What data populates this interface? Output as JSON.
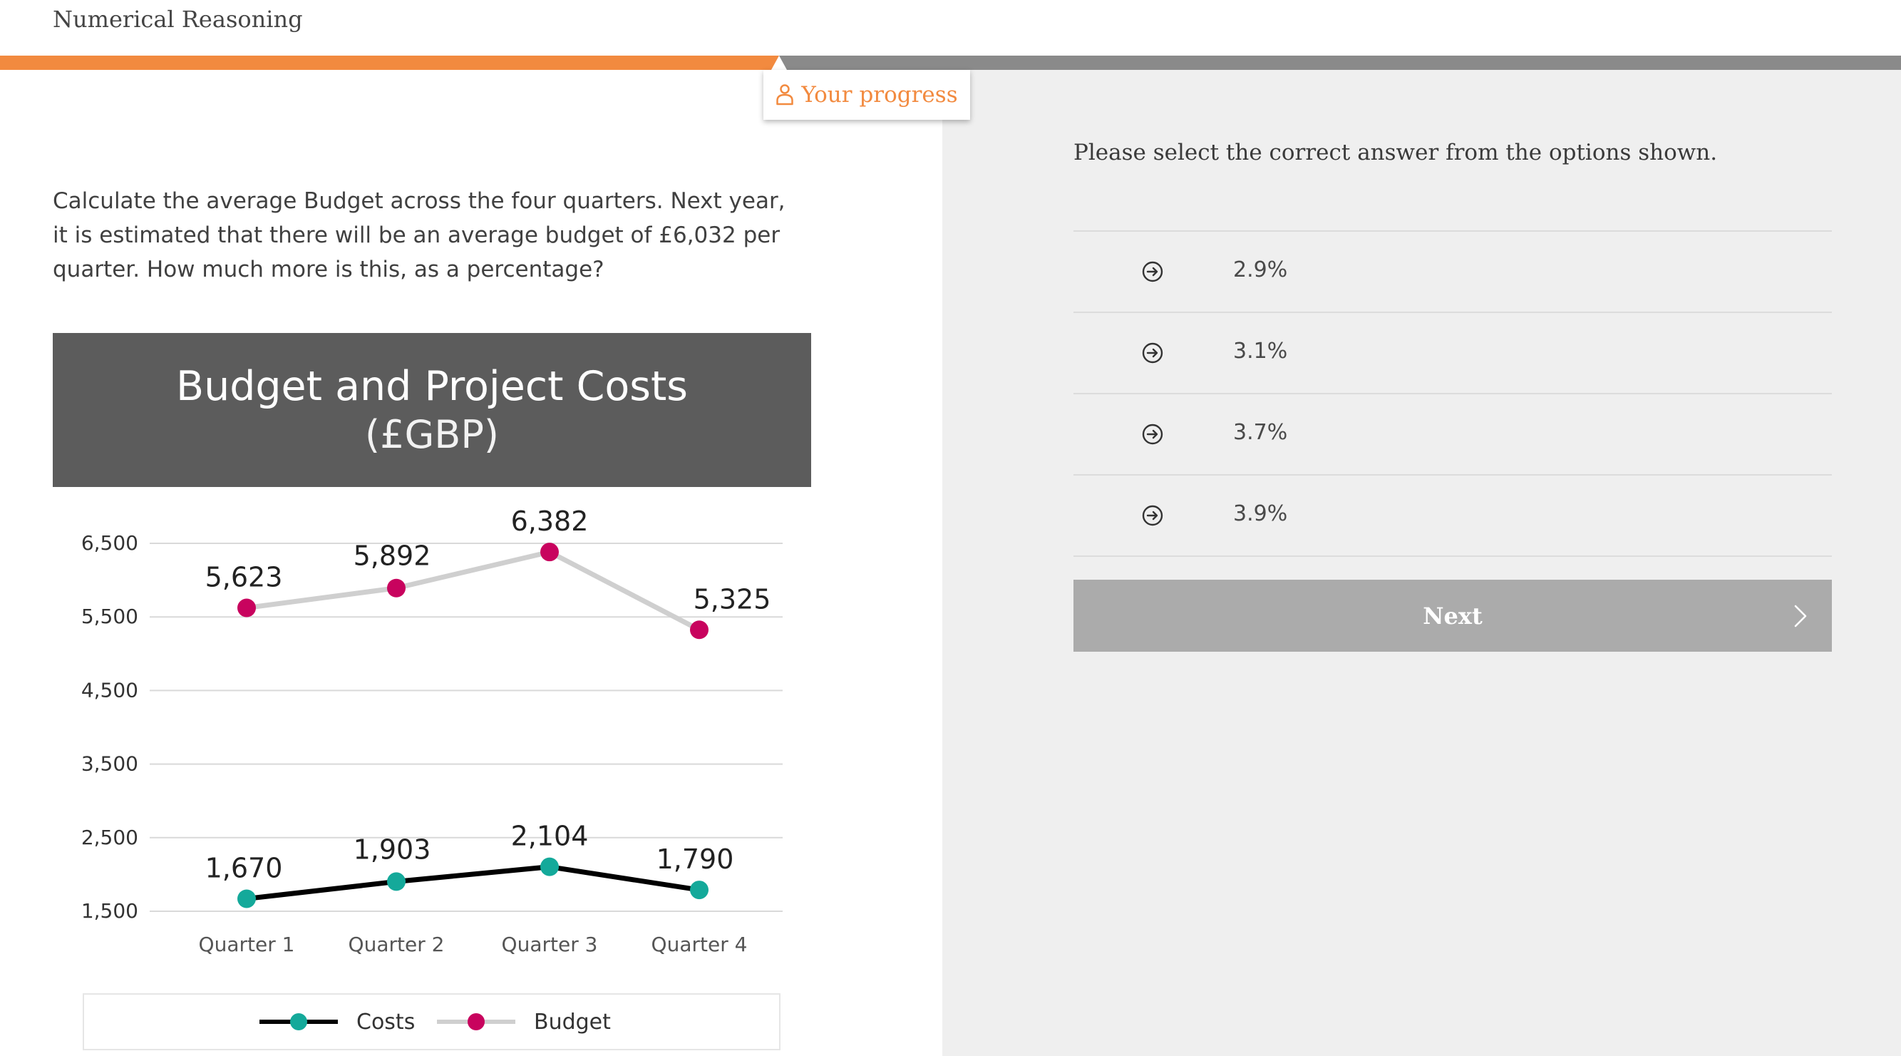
{
  "header": {
    "title": "Numerical Reasoning"
  },
  "progress": {
    "fraction": 0.41,
    "label": "Your progress"
  },
  "question": {
    "text": "Calculate the average Budget across the four quarters. Next year, it is estimated that there will be an average budget of £6,032 per quarter. How much more is this, as a percentage?"
  },
  "chart_data": {
    "type": "line",
    "title": "Budget and Project Costs",
    "subtitle": "(£GBP)",
    "categories": [
      "Quarter 1",
      "Quarter 2",
      "Quarter 3",
      "Quarter 4"
    ],
    "yticks": [
      1500,
      2500,
      3500,
      4500,
      5500,
      6500
    ],
    "ytick_labels": [
      "1,500",
      "2,500",
      "3,500",
      "4,500",
      "5,500",
      "6,500"
    ],
    "ylim": [
      1500,
      6500
    ],
    "grid": true,
    "legend_position": "bottom",
    "series": [
      {
        "name": "Costs",
        "values": [
          1670,
          1903,
          2104,
          1790
        ],
        "labels": [
          "1,670",
          "1,903",
          "2,104",
          "1,790"
        ],
        "line_color": "#000000",
        "marker_color": "#14a99a"
      },
      {
        "name": "Budget",
        "values": [
          5623,
          5892,
          6382,
          5325
        ],
        "labels": [
          "5,623",
          "5,892",
          "6,382",
          "5,325"
        ],
        "line_color": "#cfcfcf",
        "marker_color": "#c8035e"
      }
    ]
  },
  "answer_panel": {
    "instruction": "Please select the correct answer from the options shown.",
    "icon": "arrow-right-circle-icon",
    "options": [
      {
        "label": "2.9%"
      },
      {
        "label": "3.1%"
      },
      {
        "label": "3.7%"
      },
      {
        "label": "3.9%"
      }
    ],
    "next_label": "Next"
  },
  "colors": {
    "accent": "#f28a3f",
    "progress_track": "#8a8a8a",
    "chart_header_bg": "#5c5c5c",
    "panel_bg": "#efefef",
    "next_button_bg": "#ababab"
  }
}
